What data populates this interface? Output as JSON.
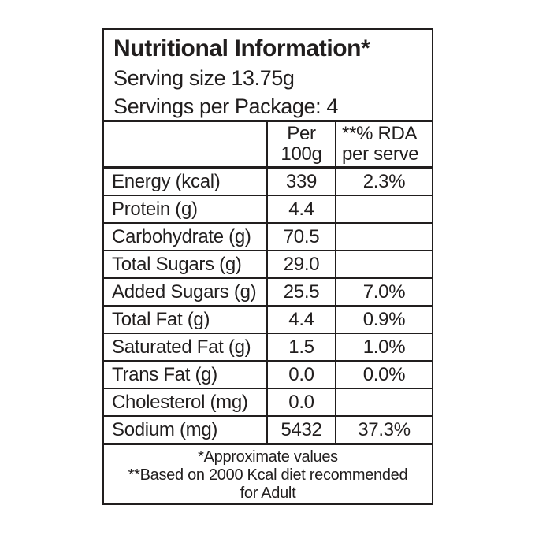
{
  "panel": {
    "title": "Nutritional Information*",
    "serving_size": "Serving size 13.75g",
    "servings_per_package": "Servings per Package: 4"
  },
  "table": {
    "columns": {
      "nutrient": "",
      "per_100g": {
        "line1": "Per",
        "line2": "100g"
      },
      "rda": {
        "line1": "**% RDA",
        "line2": "per serve"
      }
    },
    "rows": [
      {
        "label": "Energy (kcal)",
        "per_100g": "339",
        "rda": "2.3%"
      },
      {
        "label": "Protein (g)",
        "per_100g": "4.4",
        "rda": ""
      },
      {
        "label": "Carbohydrate (g)",
        "per_100g": "70.5",
        "rda": ""
      },
      {
        "label": "Total Sugars (g)",
        "per_100g": "29.0",
        "rda": ""
      },
      {
        "label": "Added Sugars (g)",
        "per_100g": "25.5",
        "rda": "7.0%"
      },
      {
        "label": "Total Fat (g)",
        "per_100g": "4.4",
        "rda": "0.9%"
      },
      {
        "label": "Saturated Fat (g)",
        "per_100g": "1.5",
        "rda": "1.0%"
      },
      {
        "label": "Trans Fat (g)",
        "per_100g": "0.0",
        "rda": "0.0%"
      },
      {
        "label": "Cholesterol (mg)",
        "per_100g": "0.0",
        "rda": ""
      },
      {
        "label": "Sodium (mg)",
        "per_100g": "5432",
        "rda": "37.3%"
      }
    ]
  },
  "footnotes": {
    "line1": "*Approximate values",
    "line2": "**Based on 2000 Kcal diet recommended",
    "line3": "for Adult"
  },
  "colors": {
    "ink": "#211e1e",
    "background": "#ffffff"
  }
}
